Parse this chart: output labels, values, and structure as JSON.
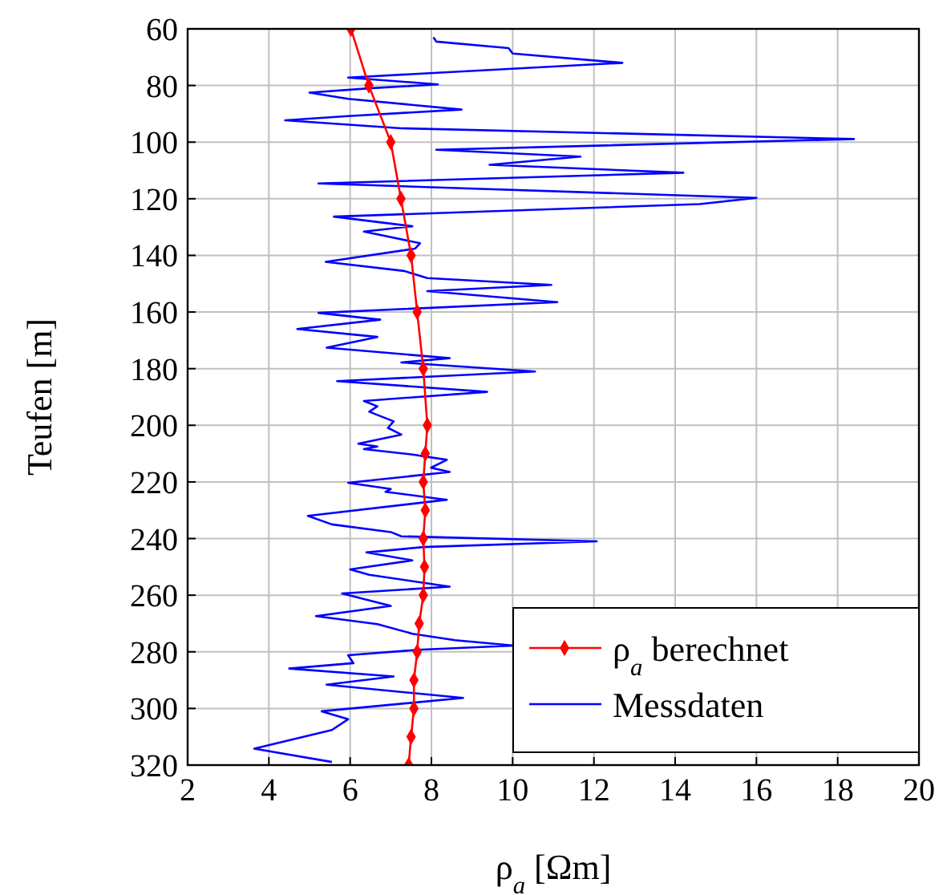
{
  "chart_data": {
    "type": "line",
    "xlabel": "ρ$_{a}$ [Ωm]",
    "ylabel": "Teufen [m]",
    "xlim": [
      2,
      20
    ],
    "xticks": [
      2,
      4,
      6,
      8,
      10,
      12,
      14,
      16,
      18,
      20
    ],
    "ylim": [
      320,
      60
    ],
    "yticks": [
      60,
      80,
      100,
      120,
      140,
      160,
      180,
      200,
      220,
      240,
      260,
      280,
      300,
      320
    ],
    "grid": true,
    "legend": "bottom right",
    "series": [
      {
        "name": "ρ$_{a}$ berechnet",
        "color": "#ff0000",
        "marker": "diamond",
        "x": [
          6.02,
          6.46,
          7.0,
          7.25,
          7.5,
          7.65,
          7.8,
          7.9,
          7.85,
          7.8,
          7.85,
          7.8,
          7.83,
          7.8,
          7.7,
          7.65,
          7.57,
          7.57,
          7.5,
          7.44
        ],
        "values": [
          60,
          80,
          100,
          120,
          140,
          160,
          180,
          200,
          210,
          220,
          230,
          240,
          250,
          260,
          270,
          280,
          290,
          300,
          310,
          320
        ]
      },
      {
        "name": "Messdaten",
        "color": "#0000ff",
        "marker": "none",
        "x": [
          8.05,
          8.12,
          9.9,
          10.0,
          12.7,
          5.95,
          8.16,
          6.47,
          5.0,
          5.95,
          8.74,
          5.95,
          4.4,
          7.26,
          18.4,
          8.12,
          11.67,
          9.43,
          14.2,
          5.22,
          16.0,
          14.6,
          5.6,
          7.53,
          6.34,
          7.72,
          7.6,
          5.4,
          7.33,
          7.9,
          10.95,
          7.9,
          11.1,
          5.22,
          6.74,
          4.7,
          6.67,
          5.42,
          8.45,
          7.26,
          10.55,
          5.68,
          9.37,
          6.34,
          6.67,
          6.47,
          7.07,
          6.93,
          7.26,
          6.2,
          6.67,
          6.34,
          7.53,
          8.38,
          7.99,
          8.45,
          5.95,
          7.0,
          6.87,
          8.38,
          4.96,
          5.55,
          7.0,
          7.26,
          12.07,
          7.8,
          6.4,
          7.53,
          6.0,
          6.47,
          8.45,
          5.8,
          7.0,
          5.16,
          6.67,
          7.53,
          8.58,
          10.03,
          7.66,
          5.95,
          6.08,
          4.5,
          7.07,
          5.42,
          8.78,
          5.3,
          5.95,
          5.55,
          3.64,
          5.55
        ],
        "values": [
          63,
          64.5,
          66.8,
          68.7,
          72,
          77.2,
          79.6,
          81,
          82.5,
          84.7,
          88.5,
          90.8,
          92.3,
          95.1,
          98.9,
          102.7,
          105.1,
          108,
          110.8,
          114.6,
          119.7,
          121.9,
          126.3,
          129.7,
          131.6,
          135.7,
          137.6,
          142.3,
          145.5,
          148,
          150.4,
          152.6,
          156.5,
          160.3,
          162.7,
          166,
          168.8,
          172.6,
          176.3,
          177.8,
          181,
          184.4,
          188.2,
          191.4,
          193.3,
          195.2,
          198.6,
          200.9,
          203.3,
          206.5,
          207.5,
          208.4,
          210.3,
          212.2,
          215,
          216.5,
          220.3,
          222.5,
          223.5,
          226.3,
          232,
          235,
          237.7,
          239.2,
          241,
          243,
          244.9,
          247.7,
          250.9,
          252.8,
          257,
          259.4,
          263.8,
          267.4,
          270.2,
          273.6,
          275.9,
          277.8,
          279.3,
          281.2,
          284,
          285.9,
          288.7,
          291.6,
          296.3,
          301,
          303.8,
          307.6,
          314.2,
          318.9
        ]
      }
    ]
  }
}
